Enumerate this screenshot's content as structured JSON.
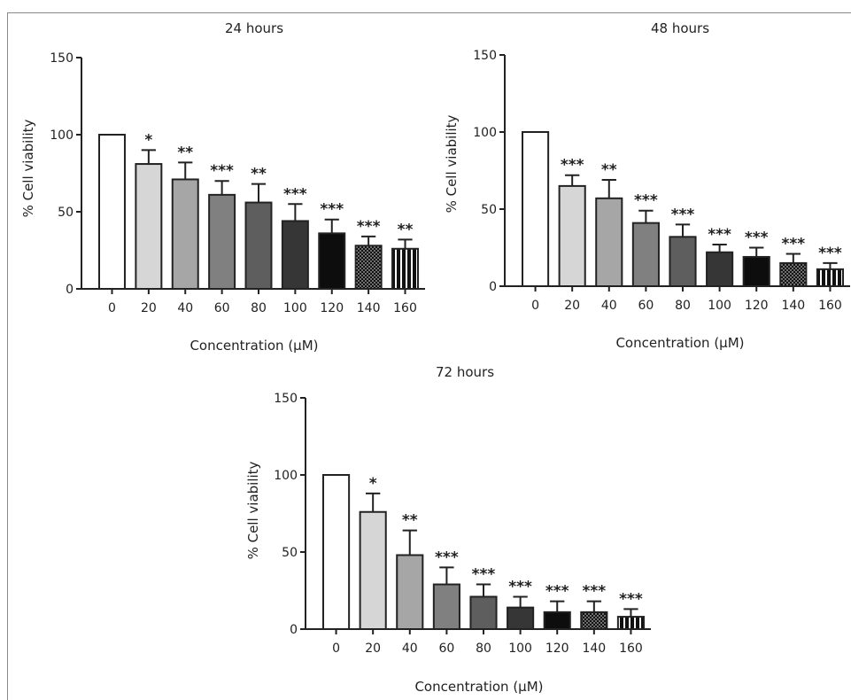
{
  "chart_data": [
    {
      "type": "bar",
      "title": "24 hours",
      "xlabel": "Concentration (µM)",
      "ylabel": "% Cell viability",
      "ylim": [
        0,
        150
      ],
      "yticks": [
        "0",
        "50",
        "100",
        "150"
      ],
      "categories": [
        "0",
        "20",
        "40",
        "60",
        "80",
        "100",
        "120",
        "140",
        "160"
      ],
      "values": [
        100,
        81,
        71,
        61,
        56,
        44,
        36,
        28,
        26
      ],
      "errors": [
        0,
        9,
        11,
        9,
        12,
        11,
        9,
        6,
        6
      ],
      "significance": [
        "",
        "*",
        "**",
        "***",
        "**",
        "***",
        "***",
        "***",
        "**"
      ]
    },
    {
      "type": "bar",
      "title": "48 hours",
      "xlabel": "Concentration (µM)",
      "ylabel": "% Cell viability",
      "ylim": [
        0,
        150
      ],
      "yticks": [
        "0",
        "50",
        "100",
        "150"
      ],
      "categories": [
        "0",
        "20",
        "40",
        "60",
        "80",
        "100",
        "120",
        "140",
        "160"
      ],
      "values": [
        100,
        65,
        57,
        41,
        32,
        22,
        19,
        15,
        11
      ],
      "errors": [
        0,
        7,
        12,
        8,
        8,
        5,
        6,
        6,
        4
      ],
      "significance": [
        "",
        "***",
        "**",
        "***",
        "***",
        "***",
        "***",
        "***",
        "***"
      ]
    },
    {
      "type": "bar",
      "title": "72 hours",
      "xlabel": "Concentration (µM)",
      "ylabel": "% Cell viability",
      "ylim": [
        0,
        150
      ],
      "yticks": [
        "0",
        "50",
        "100",
        "150"
      ],
      "categories": [
        "0",
        "20",
        "40",
        "60",
        "80",
        "100",
        "120",
        "140",
        "160"
      ],
      "values": [
        100,
        76,
        48,
        29,
        21,
        14,
        11,
        11,
        8
      ],
      "errors": [
        0,
        12,
        16,
        11,
        8,
        7,
        7,
        7,
        5
      ],
      "significance": [
        "",
        "*",
        "**",
        "***",
        "***",
        "***",
        "***",
        "***",
        "***"
      ]
    }
  ],
  "bar_styles": [
    {
      "fill": "#ffffff",
      "pattern": "none"
    },
    {
      "fill": "#d6d6d6",
      "pattern": "none"
    },
    {
      "fill": "#a6a6a6",
      "pattern": "none"
    },
    {
      "fill": "#808080",
      "pattern": "none"
    },
    {
      "fill": "#5e5e5e",
      "pattern": "none"
    },
    {
      "fill": "#363636",
      "pattern": "none"
    },
    {
      "fill": "#0d0d0d",
      "pattern": "none"
    },
    {
      "fill": "#111111",
      "pattern": "dots"
    },
    {
      "fill": "#111111",
      "pattern": "stripes"
    }
  ]
}
